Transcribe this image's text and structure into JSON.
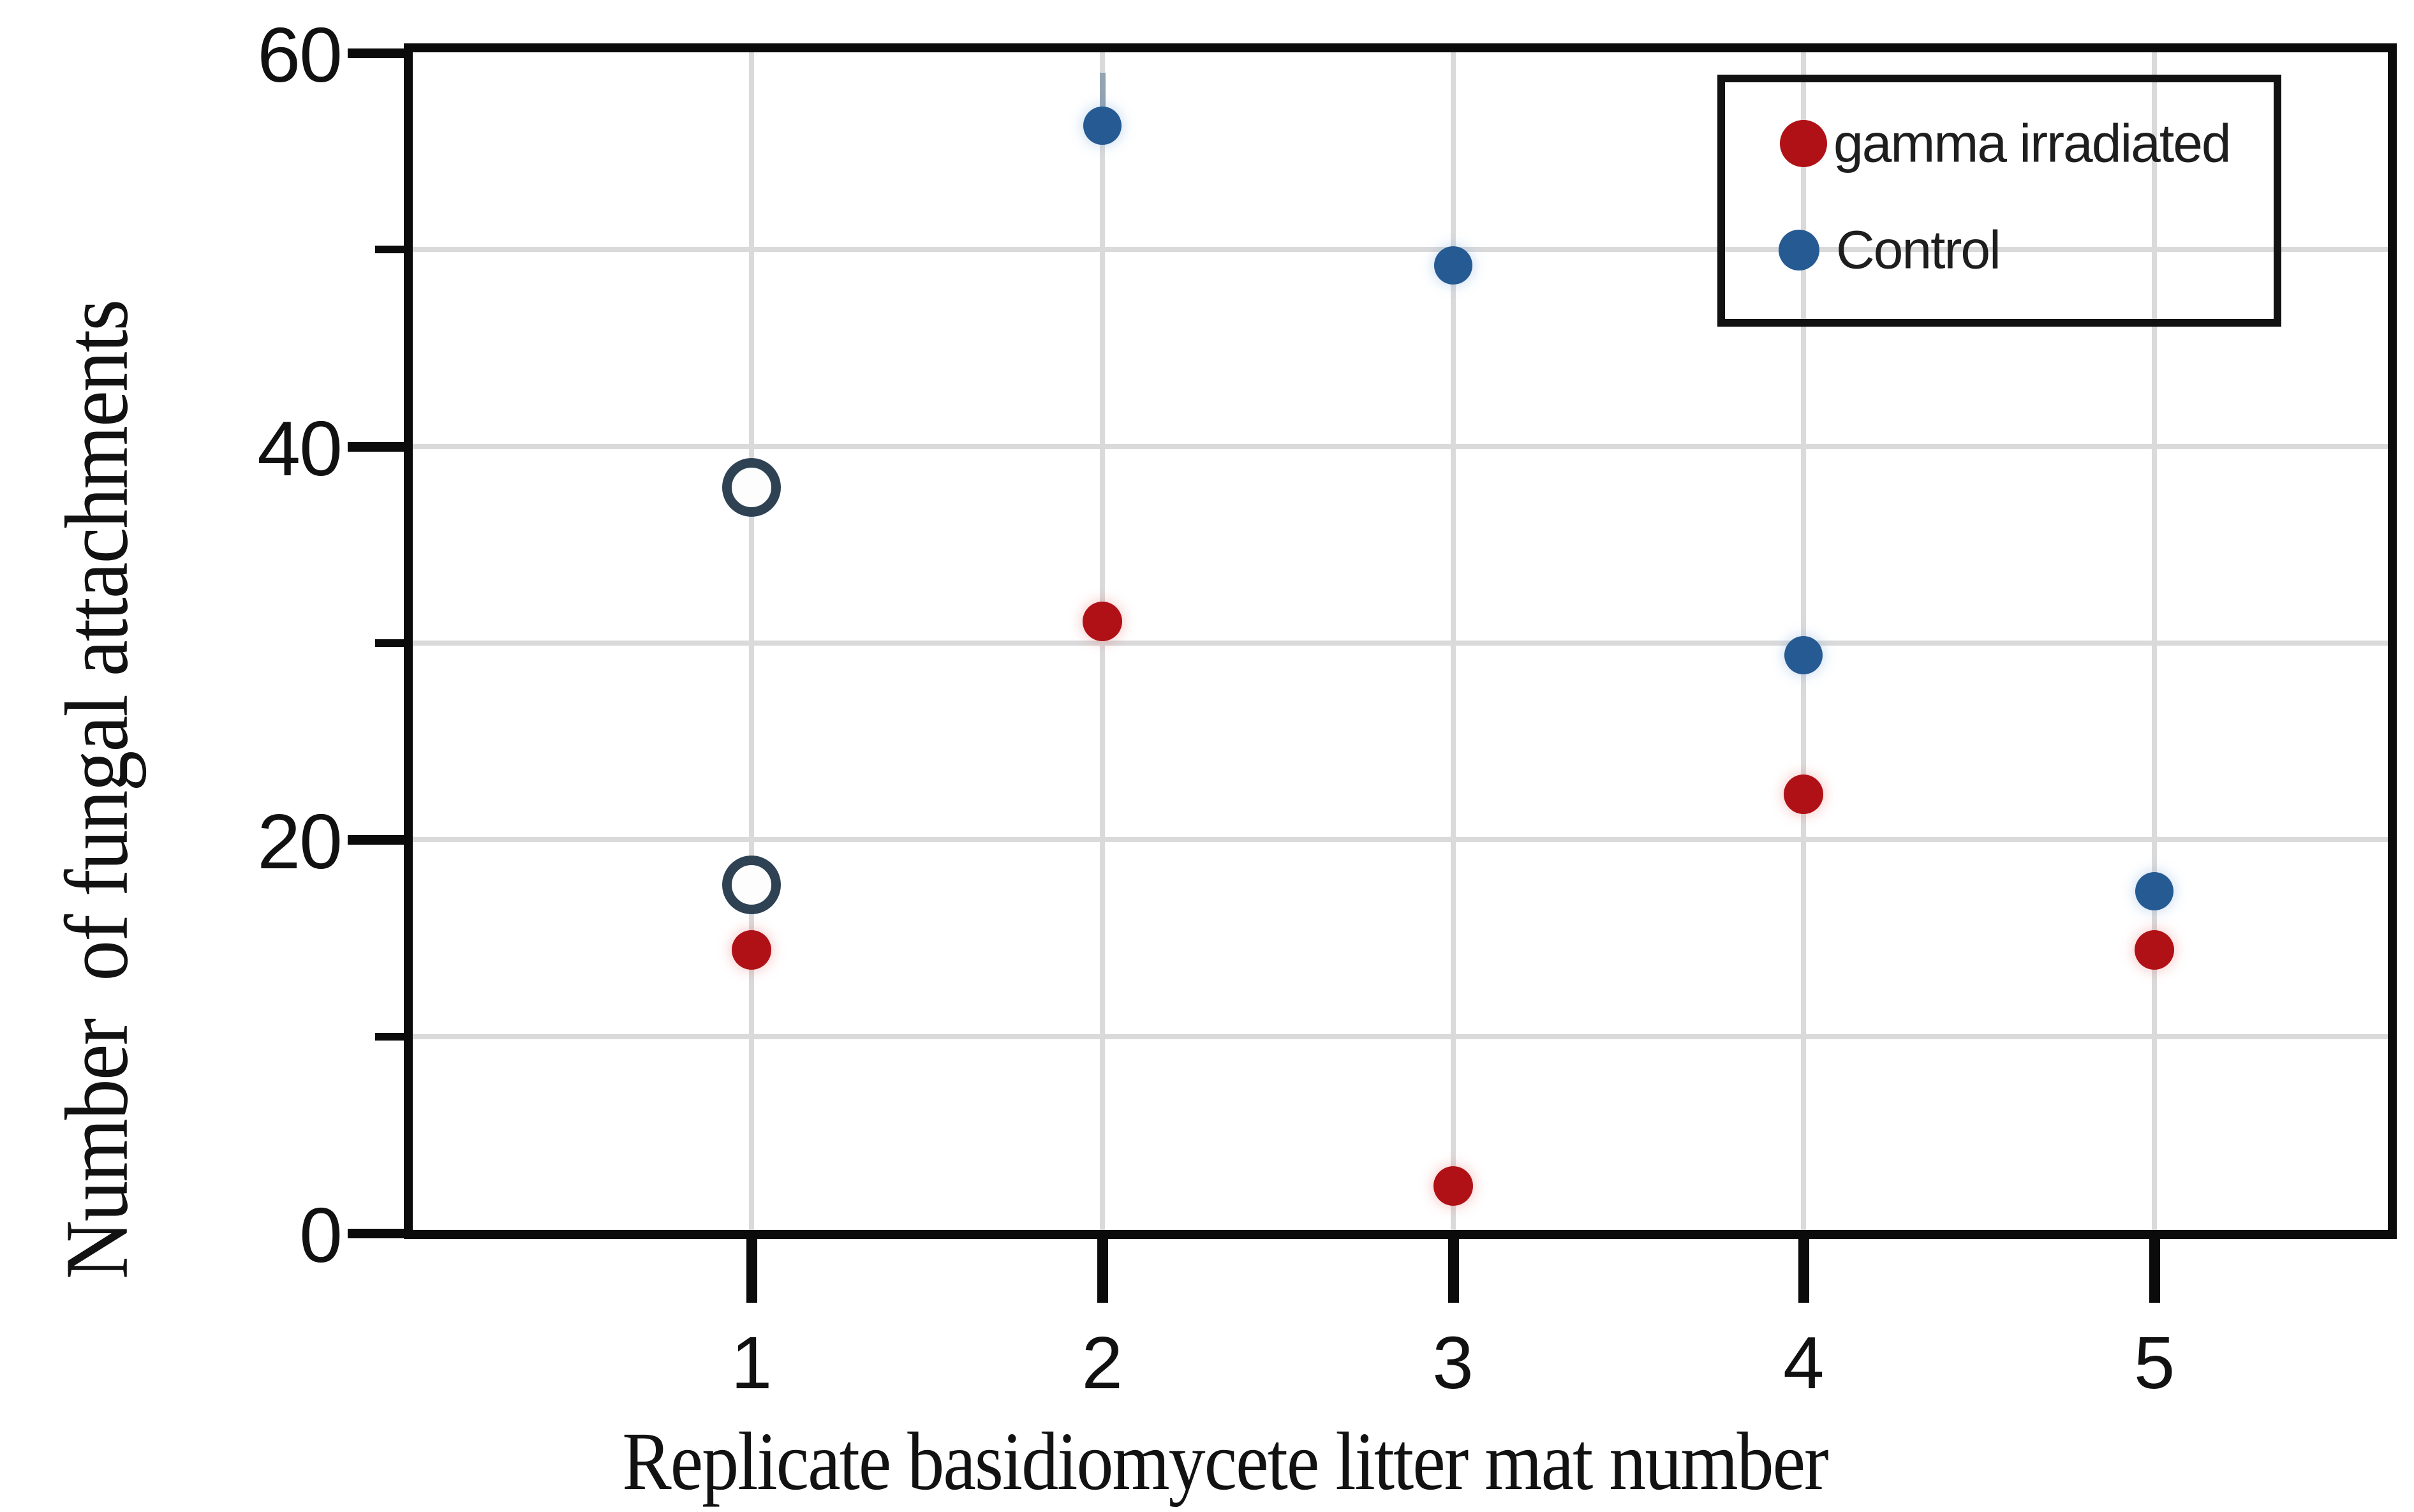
{
  "figure": {
    "background": "#ffffff",
    "frame_color": "#0b0b0b",
    "grid_color": "#dadada"
  },
  "chart_data": {
    "type": "scatter",
    "title": "",
    "xlabel": "Replicate basidiomycete litter mat number",
    "ylabel": "Number  of fungal attachments",
    "xlim": [
      0.03,
      5.67
    ],
    "ylim": [
      0,
      60
    ],
    "x_ticks": [
      1,
      2,
      3,
      4,
      5
    ],
    "y_ticks_major": [
      0,
      20,
      40,
      60
    ],
    "y_ticks_minor": [
      10,
      30,
      50
    ],
    "y_gridlines": [
      10,
      20,
      30,
      40,
      50
    ],
    "grid_on": true,
    "legend_position": "top-right",
    "series": [
      {
        "name": "gamma irradiated",
        "marker": "filled-circle",
        "color": "#b01116",
        "points": [
          [
            1,
            14.4
          ],
          [
            2,
            31.1
          ],
          [
            3,
            2.4
          ],
          [
            4,
            22.3
          ],
          [
            5,
            14.4
          ]
        ]
      },
      {
        "name": "Control",
        "marker": "filled-circle",
        "color": "#265a92",
        "points": [
          [
            2,
            56.3
          ],
          [
            3,
            49.2
          ],
          [
            4,
            29.4
          ],
          [
            5,
            17.4
          ]
        ],
        "whisker": {
          "x": 2,
          "y_from": 56.3,
          "y_to": 59.0
        }
      },
      {
        "name": "Control (open markers)",
        "marker": "open-circle",
        "color": "#2e4254",
        "points": [
          [
            1,
            37.9
          ],
          [
            1,
            17.7
          ]
        ]
      }
    ],
    "legend": {
      "entries": [
        {
          "label": "gamma irradiated",
          "color": "#b01116"
        },
        {
          "label": "Control",
          "color": "#265a92"
        }
      ]
    }
  }
}
